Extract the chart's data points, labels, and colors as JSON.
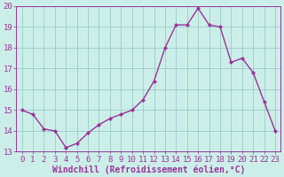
{
  "x": [
    0,
    1,
    2,
    3,
    4,
    5,
    6,
    7,
    8,
    9,
    10,
    11,
    12,
    13,
    14,
    15,
    16,
    17,
    18,
    19,
    20,
    21,
    22,
    23
  ],
  "y": [
    15.0,
    14.8,
    14.1,
    14.0,
    13.2,
    13.4,
    13.9,
    14.3,
    14.6,
    14.8,
    15.0,
    15.5,
    16.4,
    18.0,
    19.1,
    19.1,
    19.9,
    19.1,
    19.0,
    17.3,
    17.5,
    16.8,
    15.4,
    14.0
  ],
  "line_color": "#993399",
  "marker": "D",
  "marker_size": 2.2,
  "line_width": 1.0,
  "bg_color": "#cceee8",
  "grid_color": "#99cccc",
  "xlabel": "Windchill (Refroidissement éolien,°C)",
  "ylim": [
    13,
    20
  ],
  "xlim": [
    -0.5,
    23.5
  ],
  "xticks": [
    0,
    1,
    2,
    3,
    4,
    5,
    6,
    7,
    8,
    9,
    10,
    11,
    12,
    13,
    14,
    15,
    16,
    17,
    18,
    19,
    20,
    21,
    22,
    23
  ],
  "yticks": [
    13,
    14,
    15,
    16,
    17,
    18,
    19,
    20
  ],
  "tick_color": "#993399",
  "tick_fontsize": 6.5,
  "xlabel_fontsize": 7.0,
  "axis_line_color": "#993399"
}
